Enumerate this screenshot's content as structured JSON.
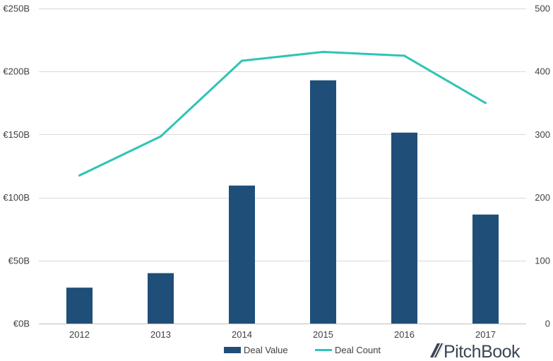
{
  "chart_data": {
    "type": "bar",
    "categories": [
      "2012",
      "2013",
      "2014",
      "2015",
      "2016",
      "2017"
    ],
    "series": [
      {
        "name": "Deal Value",
        "type": "bar",
        "axis": "left",
        "values": [
          28.5,
          40,
          109.5,
          193,
          151.5,
          86.5
        ],
        "color": "#1f4e79"
      },
      {
        "name": "Deal Count",
        "type": "line",
        "axis": "right",
        "values": [
          235,
          297,
          417,
          431,
          425,
          350
        ],
        "color": "#2ec4b6"
      }
    ],
    "y_left": {
      "ylim": [
        0,
        250
      ],
      "ticks": [
        0,
        50,
        100,
        150,
        200,
        250
      ],
      "tick_labels": [
        "€0B",
        "€50B",
        "€100B",
        "€150B",
        "€200B",
        "€250B"
      ]
    },
    "y_right": {
      "ylim": [
        0,
        500
      ],
      "ticks": [
        0,
        100,
        200,
        300,
        400,
        500
      ],
      "tick_labels": [
        "0",
        "100",
        "200",
        "300",
        "400",
        "500"
      ]
    },
    "grid": true,
    "legend": "bottom-center"
  },
  "branding": {
    "logo": "PitchBook"
  }
}
